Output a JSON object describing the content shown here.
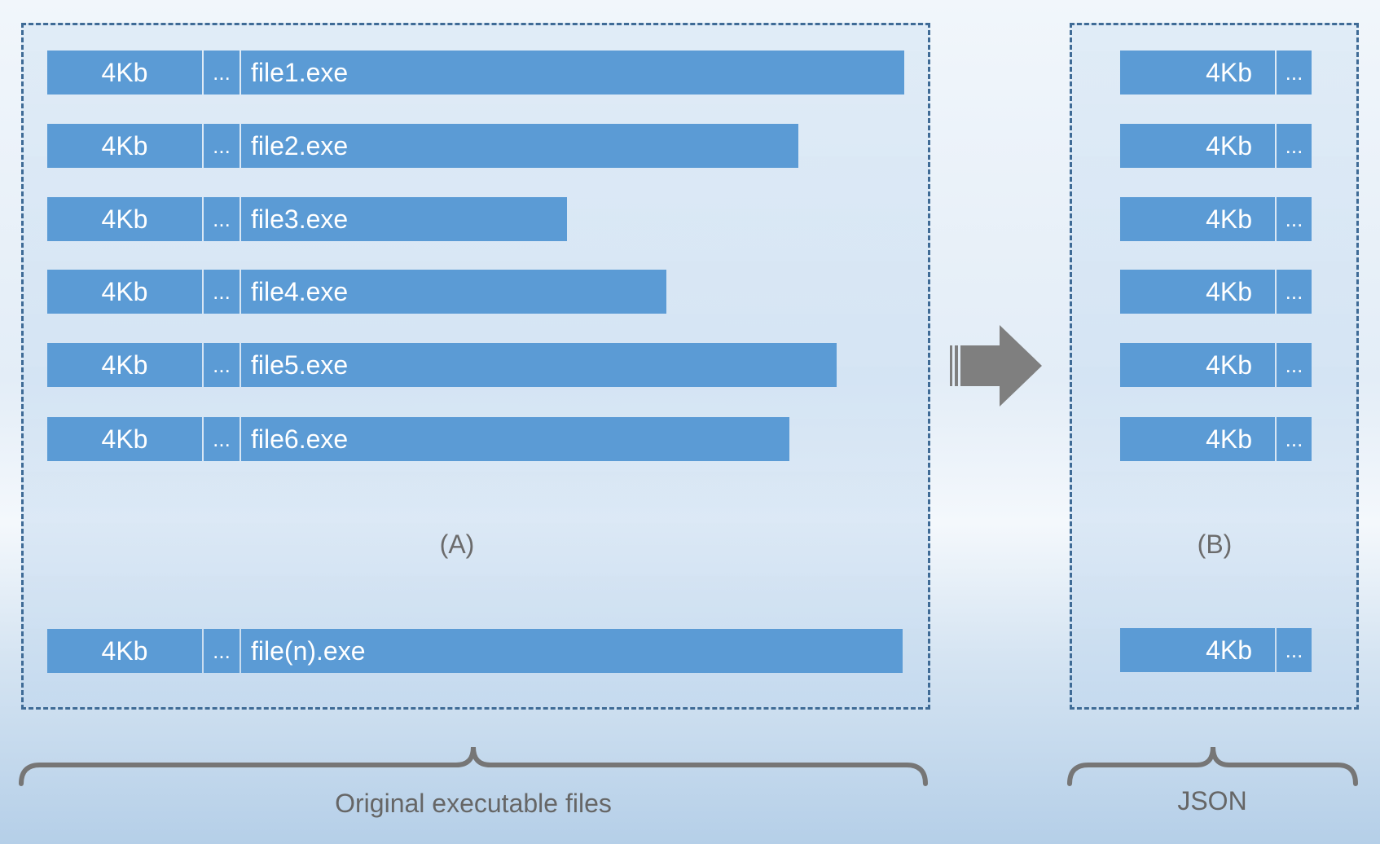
{
  "panel_a": {
    "label": "(A)",
    "rows": [
      {
        "size": "4Kb",
        "dots": "...",
        "name": "file1.exe"
      },
      {
        "size": "4Kb",
        "dots": "...",
        "name": "file2.exe"
      },
      {
        "size": "4Kb",
        "dots": "...",
        "name": "file3.exe"
      },
      {
        "size": "4Kb",
        "dots": "...",
        "name": "file4.exe"
      },
      {
        "size": "4Kb",
        "dots": "...",
        "name": "file5.exe"
      },
      {
        "size": "4Kb",
        "dots": "...",
        "name": "file6.exe"
      },
      {
        "size": "4Kb",
        "dots": "...",
        "name": "file(n).exe"
      }
    ]
  },
  "panel_b": {
    "label": "(B)",
    "rows": [
      {
        "size": "4Kb",
        "dots": "..."
      },
      {
        "size": "4Kb",
        "dots": "..."
      },
      {
        "size": "4Kb",
        "dots": "..."
      },
      {
        "size": "4Kb",
        "dots": "..."
      },
      {
        "size": "4Kb",
        "dots": "..."
      },
      {
        "size": "4Kb",
        "dots": "..."
      },
      {
        "size": "4Kb",
        "dots": "..."
      }
    ]
  },
  "captions": {
    "left": "Original executable files",
    "right": "JSON"
  },
  "colors": {
    "bar": "#5b9bd5",
    "panel_border": "#3f6b96",
    "arrow": "#7f7f7f",
    "brace": "#767676"
  }
}
